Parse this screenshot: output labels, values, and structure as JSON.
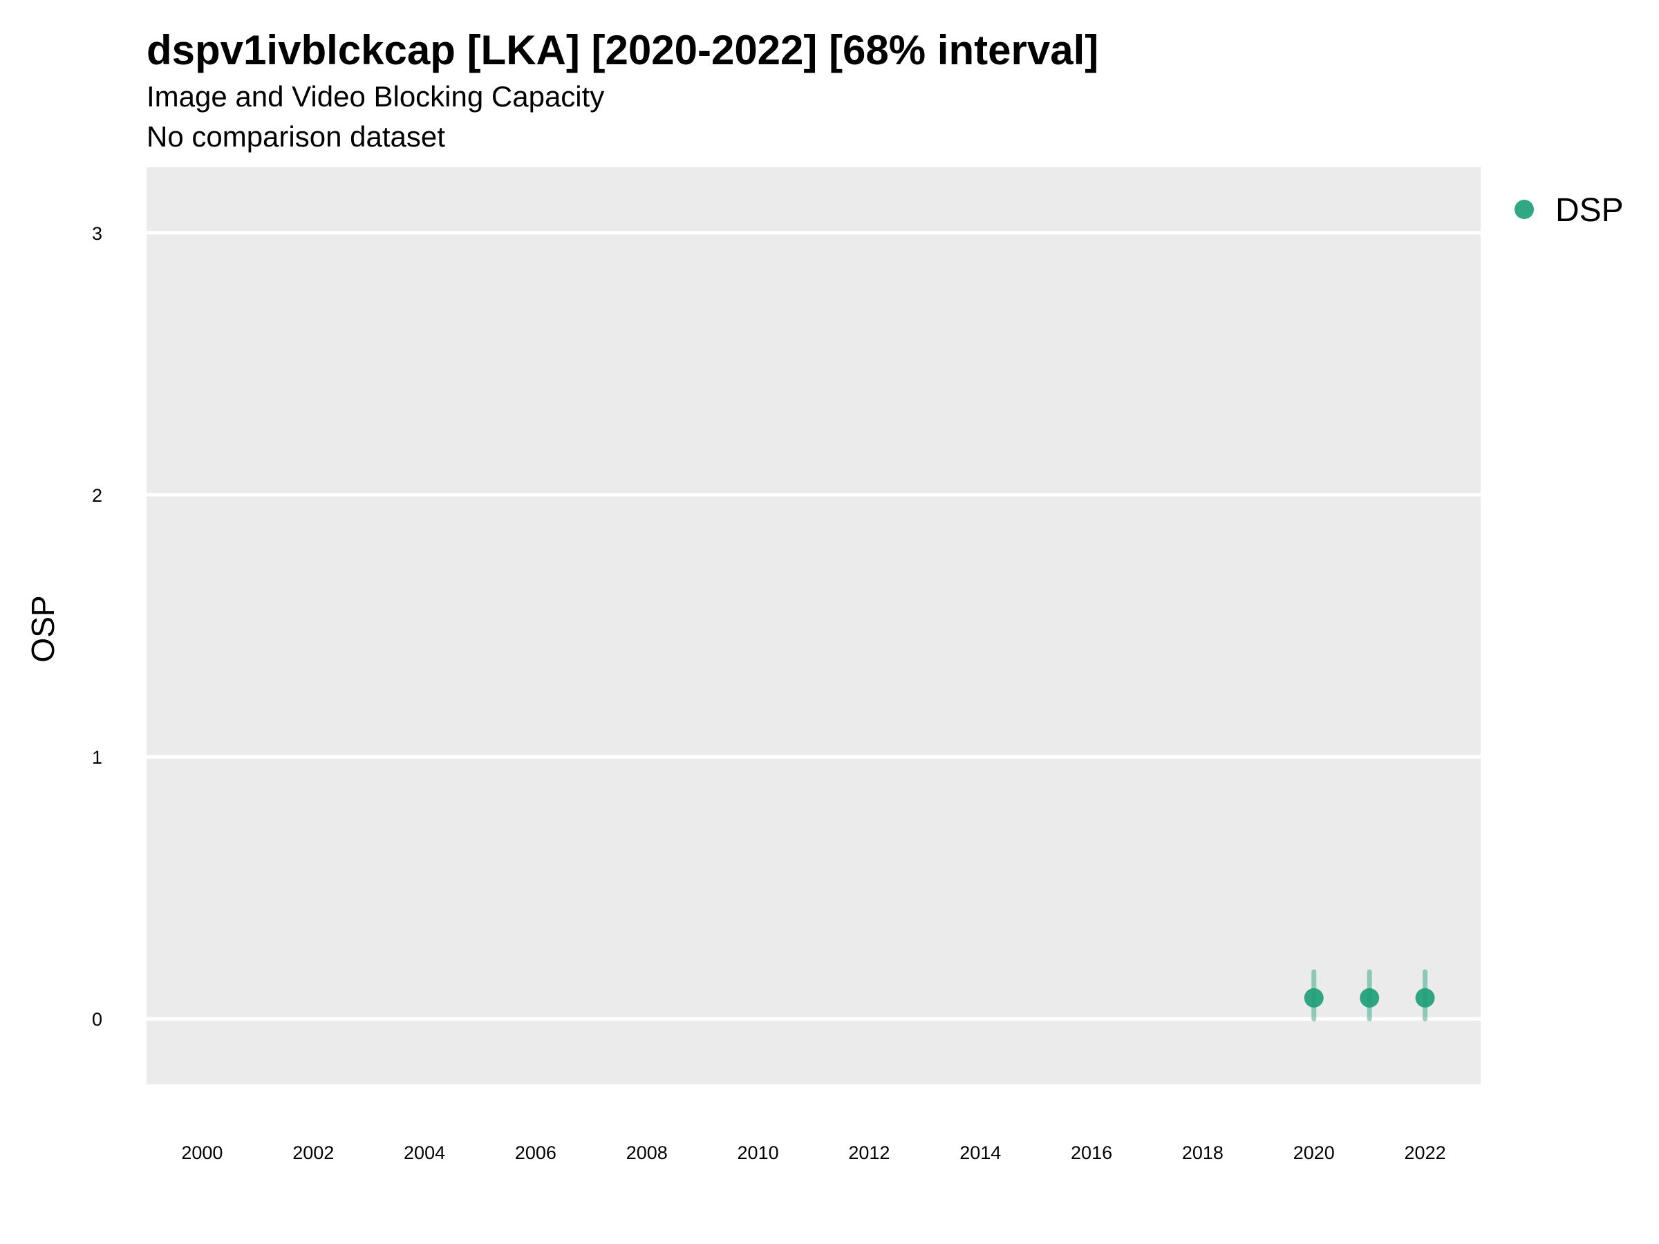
{
  "chart_data": {
    "type": "scatter",
    "title": "dspv1ivblckcap [LKA] [2020-2022] [68% interval]",
    "subtitle": "Image and Video Blocking Capacity",
    "subtitle2": "No comparison dataset",
    "xlabel": "",
    "ylabel": "OSP",
    "xlim": [
      1999,
      2023
    ],
    "ylim": [
      -0.25,
      3.25
    ],
    "x_ticks": [
      2000,
      2002,
      2004,
      2006,
      2008,
      2010,
      2012,
      2014,
      2016,
      2018,
      2020,
      2022
    ],
    "y_ticks": [
      0,
      1,
      2,
      3
    ],
    "grid": true,
    "legend_position": "top-right",
    "series": [
      {
        "name": "DSP",
        "color": "#1b9e77",
        "points": [
          {
            "x": 2020,
            "y": 0.08,
            "low": 0.0,
            "high": 0.18
          },
          {
            "x": 2021,
            "y": 0.08,
            "low": 0.0,
            "high": 0.18
          },
          {
            "x": 2022,
            "y": 0.08,
            "low": 0.0,
            "high": 0.18
          }
        ]
      }
    ]
  }
}
